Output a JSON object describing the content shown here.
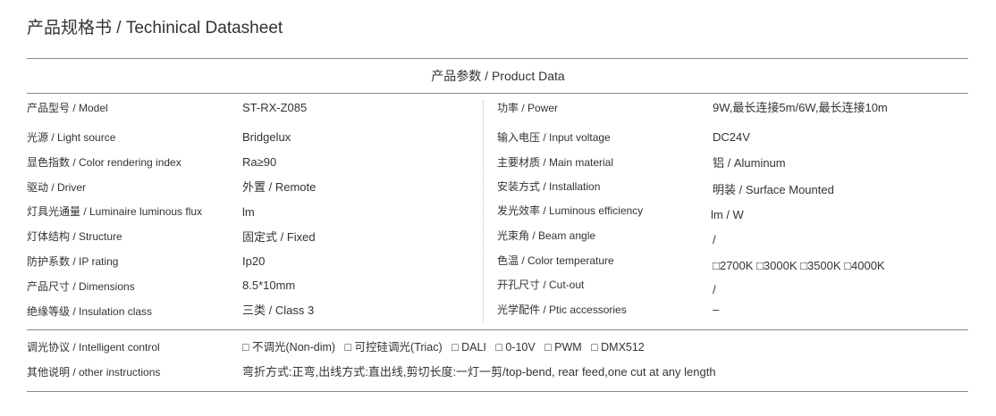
{
  "title": "产品规格书 / Techinical Datasheet",
  "section_title": "产品参数 / Product Data",
  "left_rows": [
    {
      "label": "产品型号 / Model",
      "value": "ST-RX-Z085"
    },
    {
      "label": "光源 / Light source",
      "value": "Bridgelux"
    },
    {
      "label": "显色指数 / Color rendering index",
      "value": "Ra≥90"
    },
    {
      "label": "驱动 / Driver",
      "value": "外置 / Remote"
    },
    {
      "label": "灯具光通量 / Luminaire luminous flux",
      "value": "lm"
    },
    {
      "label": "灯体结构 / Structure",
      "value": "固定式 / Fixed"
    },
    {
      "label": "防护系数  / IP  rating",
      "value": "Ip20"
    },
    {
      "label": "产品尺寸  / Dimensions",
      "value": "8.5*10mm"
    },
    {
      "label": "绝缘等级  / Insulation class",
      "value": "三类 / Class 3"
    }
  ],
  "right_rows": [
    {
      "label": "功率 / Power",
      "value": "9W,最长连接5m/6W,最长连接10m"
    },
    {
      "label": "输入电压 / Input voltage",
      "value": "DC24V"
    },
    {
      "label": "主要材质 / Main material",
      "value": "铝 / Aluminum"
    },
    {
      "label": "安装方式 / Installation",
      "value": "明装 / Surface Mounted"
    },
    {
      "label": "发光效率 / Luminous efficiency",
      "value": "lm / W"
    },
    {
      "label": "光束角 / Beam angle",
      "value": "/"
    },
    {
      "label": "色温 / Color temperature",
      "value": "□2700K □3000K □3500K □4000K"
    },
    {
      "label": "开孔尺寸 / Cut-out",
      "value": "/"
    },
    {
      "label": "光学配件 / Ptic accessories",
      "value": "–"
    }
  ],
  "bottom_rows": [
    {
      "label": "调光协议  / Intelligent control",
      "value": "□ 不调光(Non-dim)   □ 可控硅调光(Triac)   □ DALI   □ 0-10V   □ PWM   □ DMX512"
    },
    {
      "label": "其他说明  / other instructions",
      "value": "弯折方式:正弯,出线方式:直出线,剪切长度:一灯一剪/top-bend, rear feed,one cut at any length"
    }
  ]
}
